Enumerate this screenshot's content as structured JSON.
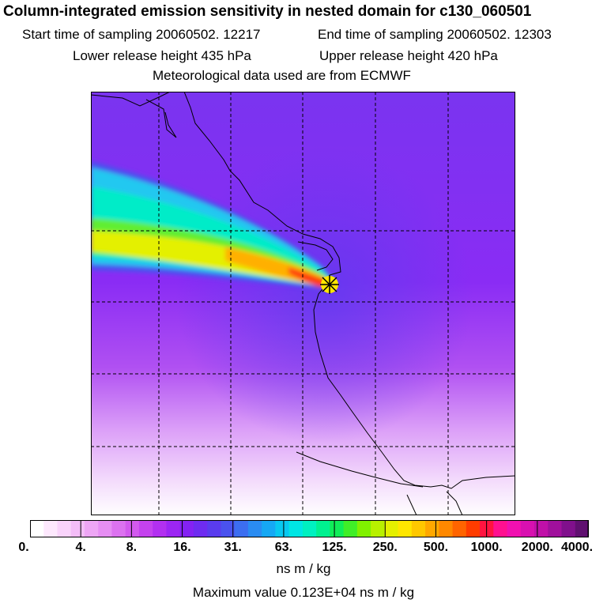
{
  "header": {
    "title": "Column-integrated emission sensitivity in nested domain for c130_060501",
    "start_time": "Start time of sampling 20060502. 12217",
    "end_time": "End time of sampling 20060502. 12303",
    "lower_release": "Lower release height  435 hPa",
    "upper_release": "Upper release height  420 hPa",
    "met_data": "Meteorological data used are from ECMWF"
  },
  "colorbar": {
    "tick_labels": [
      "0.",
      "4.",
      "8.",
      "16.",
      "31.",
      "63.",
      "125.",
      "250.",
      "500.",
      "1000.",
      "2000.",
      "4000."
    ],
    "unit": "ns m / kg",
    "colors": [
      "#ffffff",
      "#fde8fd",
      "#f9d3fb",
      "#f4bdf8",
      "#eea6f5",
      "#e68ef3",
      "#dc72f0",
      "#d25aee",
      "#c442ee",
      "#b230f0",
      "#9c26f3",
      "#8422f3",
      "#6e2cf0",
      "#5a3cee",
      "#4a52ee",
      "#3c6ef0",
      "#2a8cf2",
      "#16a8f4",
      "#08c8f0",
      "#00e6e4",
      "#00f0c0",
      "#00f090",
      "#10ee58",
      "#40ee28",
      "#80f000",
      "#b8f000",
      "#e4f000",
      "#ffe600",
      "#ffc800",
      "#ffa800",
      "#ff8800",
      "#ff6400",
      "#ff3c00",
      "#ff1440",
      "#ff1090",
      "#f010b0",
      "#d810b0",
      "#c010a8",
      "#a0109c",
      "#80108c",
      "#601070"
    ]
  },
  "max_value": "Maximum value  0.123E+04 ns m / kg",
  "map": {
    "release_marker": "star-cross",
    "background_color": "#8a2cf4",
    "plume_colors": [
      "#20c8f0",
      "#00ecd8",
      "#20f090",
      "#80f000",
      "#e4f000",
      "#ffc800",
      "#ff5a00",
      "#e81418"
    ]
  }
}
